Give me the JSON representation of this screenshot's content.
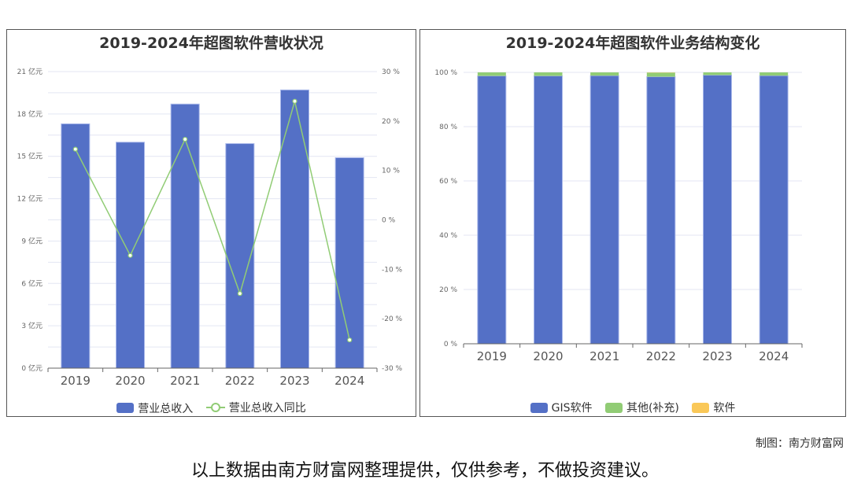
{
  "chart_data": [
    {
      "type": "bar+line",
      "title": "2019-2024年超图软件营收状况",
      "categories": [
        "2019",
        "2020",
        "2021",
        "2022",
        "2023",
        "2024"
      ],
      "series": [
        {
          "name": "营业总收入",
          "axis": "left",
          "unit": "亿元",
          "values": [
            17.3,
            16.0,
            18.7,
            15.9,
            19.7,
            14.9
          ]
        },
        {
          "name": "营业总收入同比",
          "axis": "right",
          "unit": "%",
          "values": [
            14.3,
            -7.2,
            16.3,
            -14.9,
            24.0,
            -24.3
          ]
        }
      ],
      "ylim": [
        0,
        21
      ],
      "yticks": [
        "0 亿元",
        "3 亿元",
        "6 亿元",
        "9 亿元",
        "12 亿元",
        "15 亿元",
        "18 亿元",
        "21 亿元"
      ],
      "y2lim": [
        -30,
        30
      ],
      "y2ticks": [
        "-30 %",
        "-20 %",
        "-10 %",
        "0 %",
        "10 %",
        "20 %",
        "30 %"
      ],
      "legend": "bottom",
      "grid": true
    },
    {
      "type": "stacked-bar",
      "title": "2019-2024年超图软件业务结构变化",
      "categories": [
        "2019",
        "2020",
        "2021",
        "2022",
        "2023",
        "2024"
      ],
      "series": [
        {
          "name": "GIS软件",
          "values": [
            98.7,
            98.7,
            98.8,
            98.4,
            99.0,
            98.8
          ]
        },
        {
          "name": "其他(补充)",
          "values": [
            1.3,
            1.3,
            1.2,
            1.5,
            1.0,
            1.2
          ]
        },
        {
          "name": "软件",
          "values": [
            0,
            0,
            0,
            0.1,
            0,
            0
          ]
        }
      ],
      "ylim": [
        0,
        100
      ],
      "yticks": [
        "0 %",
        "20 %",
        "40 %",
        "60 %",
        "80 %",
        "100 %"
      ],
      "legend": "bottom",
      "grid": true
    }
  ],
  "colors": {
    "blue": "#5470c6",
    "green": "#91cc75",
    "yellow": "#fac858"
  },
  "credit": "制图：南方财富网",
  "caption": "以上数据由南方财富网整理提供，仅供参考，不做投资建议。"
}
